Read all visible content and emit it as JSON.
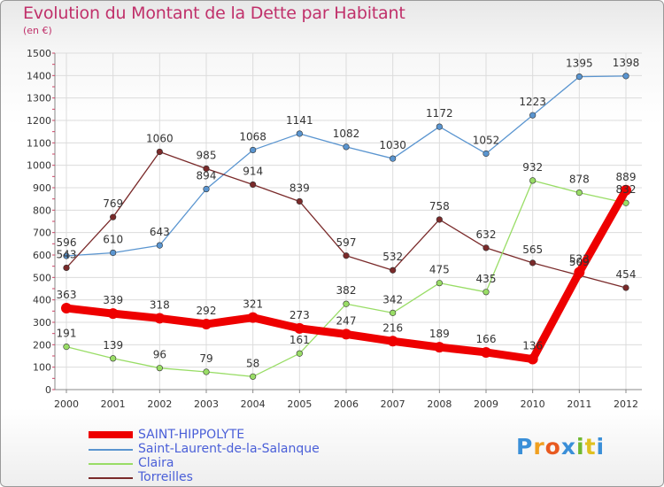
{
  "title": "Evolution du Montant de la Dette par Habitant",
  "unit": "(en €)",
  "logo": "Proxiti",
  "chart_data": {
    "type": "line",
    "x": [
      "2000",
      "2001",
      "2002",
      "2003",
      "2004",
      "2005",
      "2006",
      "2007",
      "2008",
      "2009",
      "2010",
      "2011",
      "2012"
    ],
    "ylim": [
      0,
      1500
    ],
    "yticks": [
      0,
      100,
      200,
      300,
      400,
      500,
      600,
      700,
      800,
      900,
      1000,
      1100,
      1200,
      1300,
      1400,
      1500
    ],
    "grid": true,
    "legend": "bottom",
    "series": [
      {
        "name": "SAINT-HIPPOLYTE",
        "color": "#ee0000",
        "values": [
          363,
          339,
          318,
          292,
          321,
          273,
          247,
          216,
          189,
          166,
          136,
          523,
          889
        ]
      },
      {
        "name": "Saint-Laurent-de-la-Salanque",
        "color": "#5a95d0",
        "values": [
          596,
          610,
          643,
          894,
          1068,
          1141,
          1082,
          1030,
          1172,
          1052,
          1223,
          1395,
          1398
        ]
      },
      {
        "name": "Claira",
        "color": "#99dd66",
        "values": [
          191,
          139,
          96,
          79,
          58,
          161,
          382,
          342,
          475,
          435,
          932,
          878,
          832
        ]
      },
      {
        "name": "Torreilles",
        "color": "#7a2a2a",
        "values": [
          543,
          769,
          1060,
          985,
          914,
          839,
          597,
          532,
          758,
          632,
          565,
          509,
          454
        ]
      }
    ]
  }
}
